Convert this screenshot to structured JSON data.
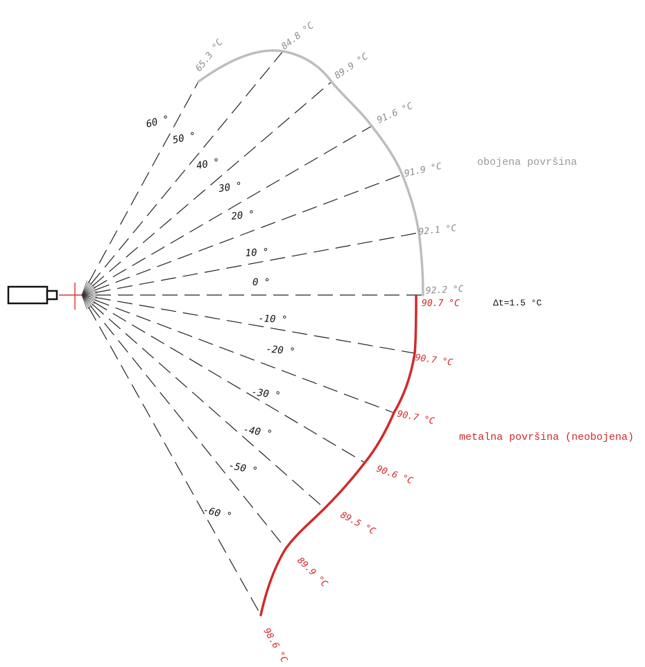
{
  "colors": {
    "painted": "#bdbdbd",
    "painted_text": "#8c8c8c",
    "metal": "#d12a2a",
    "ray": "#222222",
    "crosshair": "#e03030"
  },
  "painted_surface": {
    "label": "obojena površina",
    "points": [
      {
        "angle": "60 °",
        "temp": "65.3 °C"
      },
      {
        "angle": "50 °",
        "temp": "84.8 °C"
      },
      {
        "angle": "40 °",
        "temp": "89.9 °C"
      },
      {
        "angle": "30 °",
        "temp": "91.6 °C"
      },
      {
        "angle": "20 °",
        "temp": "91.9 °C"
      },
      {
        "angle": "10 °",
        "temp": "92.1 °C"
      },
      {
        "angle": "0 °",
        "temp": "92.2 °C"
      }
    ]
  },
  "metal_surface": {
    "label": "metalna površina (neobojena)",
    "points": [
      {
        "angle": "0 °",
        "temp": "90.7 °C"
      },
      {
        "angle": "-10 °",
        "temp": "90.7 °C"
      },
      {
        "angle": "-20 °",
        "temp": "90.7 °C"
      },
      {
        "angle": "-30 °",
        "temp": "90.6 °C"
      },
      {
        "angle": "-40 °",
        "temp": "89.5 °C"
      },
      {
        "angle": "-50 °",
        "temp": "89.9 °C"
      },
      {
        "angle": "-60 °",
        "temp": "98.6 °C"
      }
    ]
  },
  "delta_label": "Δt=1.5 °C",
  "icons": {
    "camera": "camera-icon",
    "crosshair": "crosshair-icon"
  }
}
